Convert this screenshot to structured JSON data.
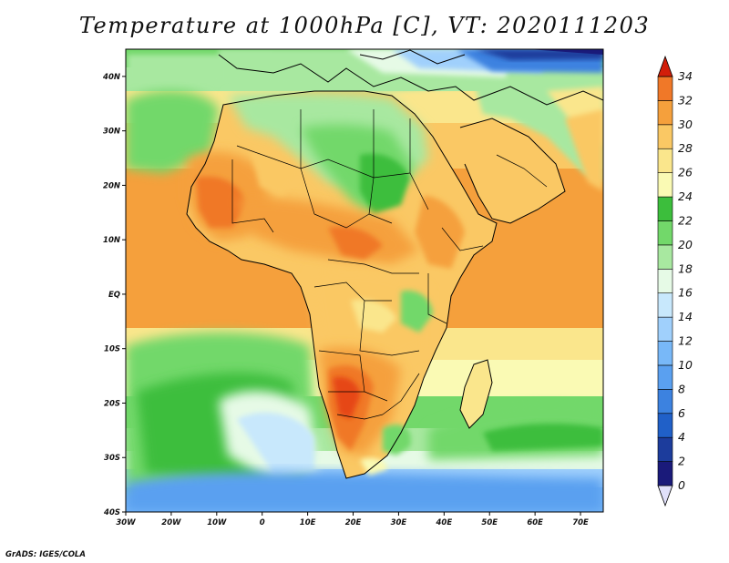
{
  "title": "Temperature at 1000hPa [C], VT: 2020111203",
  "credit": "GrADS: IGES/COLA",
  "map": {
    "lat_labels": [
      "40N",
      "30N",
      "20N",
      "10N",
      "EQ",
      "10S",
      "20S",
      "30S",
      "40S"
    ],
    "lon_labels": [
      "30W",
      "20W",
      "10W",
      "0",
      "10E",
      "20E",
      "30E",
      "40E",
      "50E",
      "60E",
      "70E"
    ],
    "lon_range": [
      -30,
      75
    ],
    "lat_range": [
      -40,
      45
    ]
  },
  "colorbar": {
    "labels": [
      "34",
      "32",
      "30",
      "28",
      "26",
      "24",
      "22",
      "20",
      "18",
      "16",
      "14",
      "12",
      "10",
      "8",
      "6",
      "4",
      "2",
      "0"
    ],
    "colors": [
      "#1a1a7a",
      "#1c3c9c",
      "#2060c8",
      "#3c82e0",
      "#5aa0f0",
      "#78b8f8",
      "#a0d0fc",
      "#c8e8fc",
      "#e6fae6",
      "#a8e8a0",
      "#72d86a",
      "#3cbe3c",
      "#fafab4",
      "#fae68c",
      "#fac864",
      "#f5a03c",
      "#f07828",
      "#e64614",
      "#d21e0a"
    ]
  }
}
